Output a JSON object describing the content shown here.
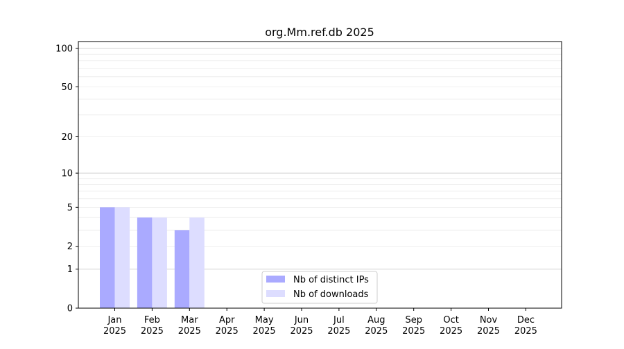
{
  "chart_data": {
    "type": "bar",
    "title": "org.Mm.ref.db 2025",
    "xlabel": "",
    "ylabel": "",
    "yscale": "log(1+y)",
    "ylim": [
      0,
      113
    ],
    "yticks": [
      0,
      1,
      2,
      5,
      10,
      20,
      50,
      100
    ],
    "grid": true,
    "legend_position": "lower-center",
    "categories": [
      "Jan\n2025",
      "Feb\n2025",
      "Mar\n2025",
      "Apr\n2025",
      "May\n2025",
      "Jun\n2025",
      "Jul\n2025",
      "Aug\n2025",
      "Sep\n2025",
      "Oct\n2025",
      "Nov\n2025",
      "Dec\n2025"
    ],
    "series": [
      {
        "name": "Nb of distinct IPs",
        "color": "#aaaaff",
        "values": [
          5,
          4,
          3,
          0,
          0,
          0,
          0,
          0,
          0,
          0,
          0,
          0
        ]
      },
      {
        "name": "Nb of downloads",
        "color": "#ddddff",
        "values": [
          5,
          4,
          4,
          0,
          0,
          0,
          0,
          0,
          0,
          0,
          0,
          0
        ]
      }
    ]
  }
}
